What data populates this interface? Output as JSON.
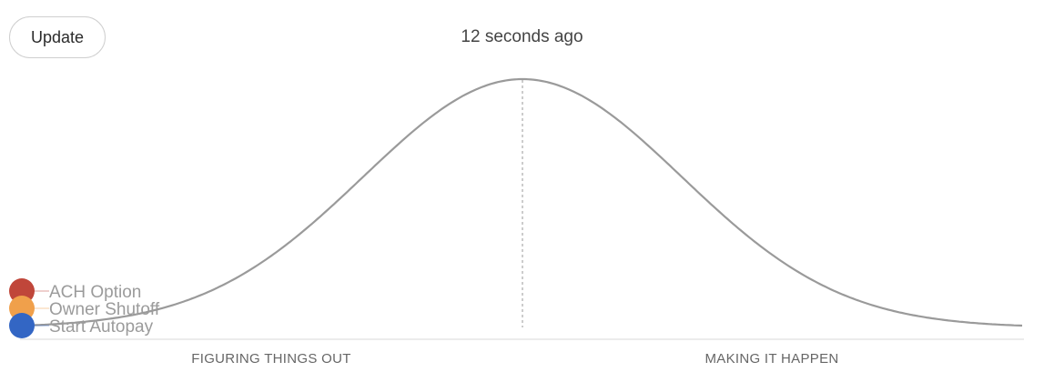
{
  "toolbar": {
    "update_label": "Update"
  },
  "status": {
    "last_updated": "12 seconds ago"
  },
  "hill_chart": {
    "phases": {
      "left": "FIGURING THINGS OUT",
      "right": "MAKING IT HAPPEN"
    },
    "curve_color": "#9a9a9a",
    "items": [
      {
        "label": "ACH Option",
        "color": "#c0463a",
        "position": 0
      },
      {
        "label": "Owner Shutoff",
        "color": "#f0a04b",
        "position": 0
      },
      {
        "label": "Start Autopay",
        "color": "#3366c4",
        "position": 0
      }
    ]
  }
}
